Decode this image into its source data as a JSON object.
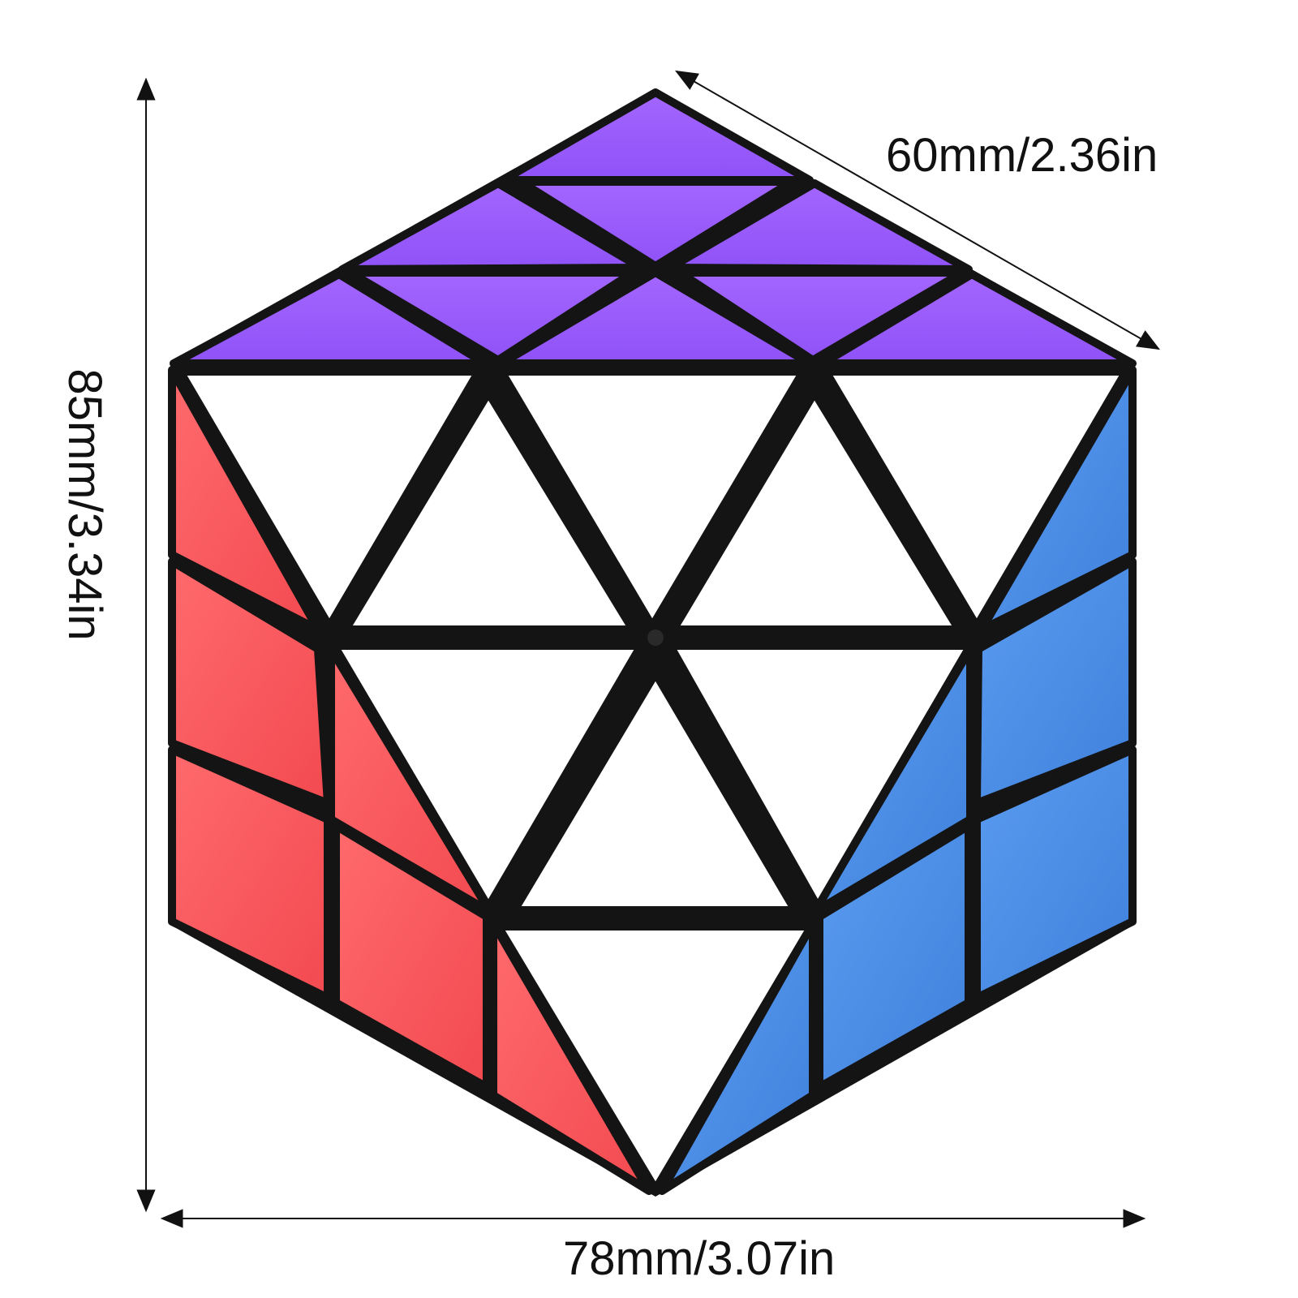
{
  "dimensions": {
    "depth_label": "60mm/2.36in",
    "height_label": "85mm/3.34in",
    "width_label": "78mm/3.07in"
  },
  "colors": {
    "top_face": "#9a5cff",
    "front_face": "#ffffff",
    "left_face": "#ff5a5f",
    "right_face": "#4f8fe6",
    "plastic": "#141414",
    "arrow": "#111111"
  },
  "object": {
    "name": "skewb-style axis puzzle cube",
    "faces_visible": [
      "top",
      "left",
      "right",
      "front"
    ]
  }
}
